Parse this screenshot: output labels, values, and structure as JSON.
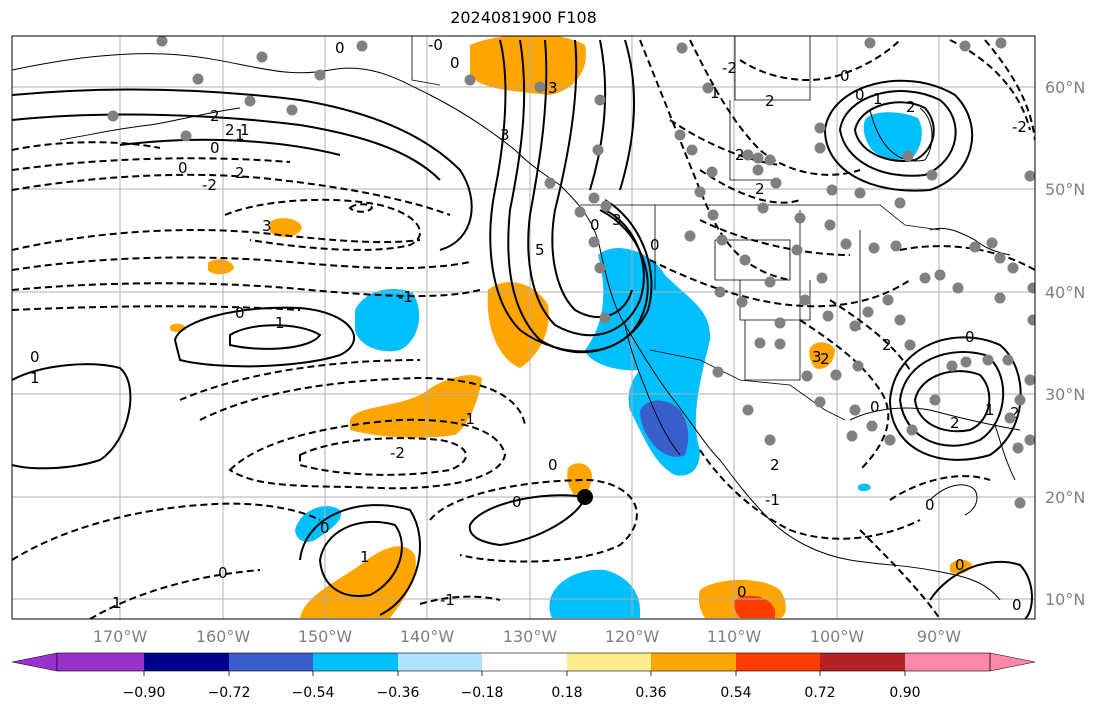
{
  "title": "2024081900 F108",
  "map": {
    "lat_ticks": [
      "60°N",
      "50°N",
      "40°N",
      "30°N",
      "20°N",
      "10°N"
    ],
    "lon_ticks": [
      "170°W",
      "160°W",
      "150°W",
      "140°W",
      "130°W",
      "120°W",
      "110°W",
      "100°W",
      "90°W"
    ],
    "contour_labels": [
      "0",
      "2",
      "2",
      "1",
      "0",
      "2",
      "3",
      "0",
      "-0",
      "0",
      "3",
      "1",
      "2",
      "0",
      "2",
      "2",
      "-2",
      "-2",
      "-2",
      "0",
      "1",
      "2",
      "2",
      "2",
      "1",
      "0",
      "0",
      "1",
      "0",
      "1",
      "1",
      "0",
      "-1",
      "-2",
      "-1",
      "0",
      "0",
      "0",
      "1",
      "0",
      "-1",
      "0",
      "0",
      "0",
      "5",
      "3",
      "3",
      "2",
      "2",
      "1",
      "0",
      "3",
      "2",
      "0",
      "0",
      "-1"
    ],
    "colors": {
      "orange": "#ffa500",
      "cyan": "#00bfff",
      "blue": "#3a5fcd",
      "red": "#ff3c00",
      "station": "#808080",
      "grid": "#b0b0b0"
    }
  },
  "colorbar": {
    "tick_labels": [
      "−0.90",
      "−0.72",
      "−0.54",
      "−0.36",
      "−0.18",
      "0.18",
      "0.36",
      "0.54",
      "0.72",
      "0.90"
    ],
    "colors": [
      "#9932cc",
      "#00008b",
      "#3a5fcd",
      "#00bfff",
      "#b0e2ff",
      "#ffffff",
      "#ffec8b",
      "#ffa500",
      "#ff3c00",
      "#b22222",
      "#ff88aa"
    ]
  }
}
